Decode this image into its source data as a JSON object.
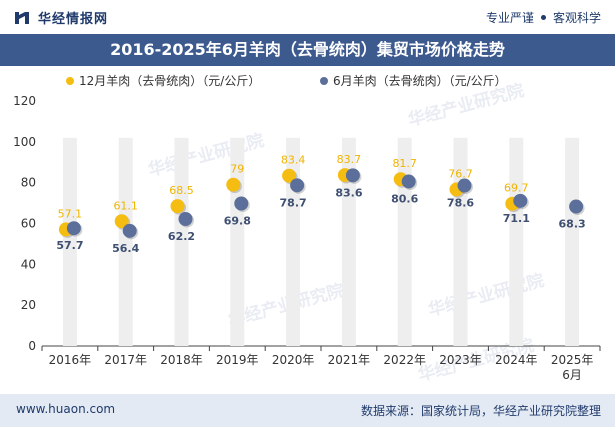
{
  "header": {
    "brand_name": "华经情报网",
    "tagline_left": "专业严谨",
    "tagline_right": "客观科学"
  },
  "footer": {
    "url": "www.huaon.com",
    "source": "数据来源：国家统计局，华经产业研究院整理"
  },
  "watermark": "华经产业研究院",
  "colors": {
    "series_dec": "#f5bd12",
    "series_jun": "#5b6f9a",
    "column": "#eeeeee",
    "header_bg": "#3d5a8f"
  },
  "chart_data": {
    "type": "scatter",
    "title": "2016-2025年6月羊肉（去骨统肉）集贸市场价格走势",
    "categories": [
      "2016年",
      "2017年",
      "2018年",
      "2019年",
      "2020年",
      "2021年",
      "2022年",
      "2023年",
      "2024年",
      "2025年"
    ],
    "categories_sub": [
      "",
      "",
      "",
      "",
      "",
      "",
      "",
      "",
      "",
      "6月"
    ],
    "ylim": [
      0,
      120
    ],
    "yticks": [
      0,
      20,
      40,
      60,
      80,
      100,
      120
    ],
    "legend_position": "top",
    "series": [
      {
        "name": "12月羊肉（去骨统肉）（元/公斤）",
        "values": [
          57.1,
          61.1,
          68.5,
          79,
          83.4,
          83.7,
          81.7,
          76.7,
          69.7,
          null
        ],
        "labels": [
          "57.1",
          "61.1",
          "68.5",
          "79",
          "83.4",
          "83.7",
          "81.7",
          "76.7",
          "69.7",
          ""
        ]
      },
      {
        "name": "6月羊肉（去骨统肉）（元/公斤）",
        "values": [
          57.7,
          56.4,
          62.2,
          69.8,
          78.7,
          83.6,
          80.6,
          78.6,
          71.1,
          68.3
        ],
        "labels": [
          "57.7",
          "56.4",
          "62.2",
          "69.8",
          "78.7",
          "83.6",
          "80.6",
          "78.6",
          "71.1",
          "68.3"
        ]
      }
    ]
  }
}
